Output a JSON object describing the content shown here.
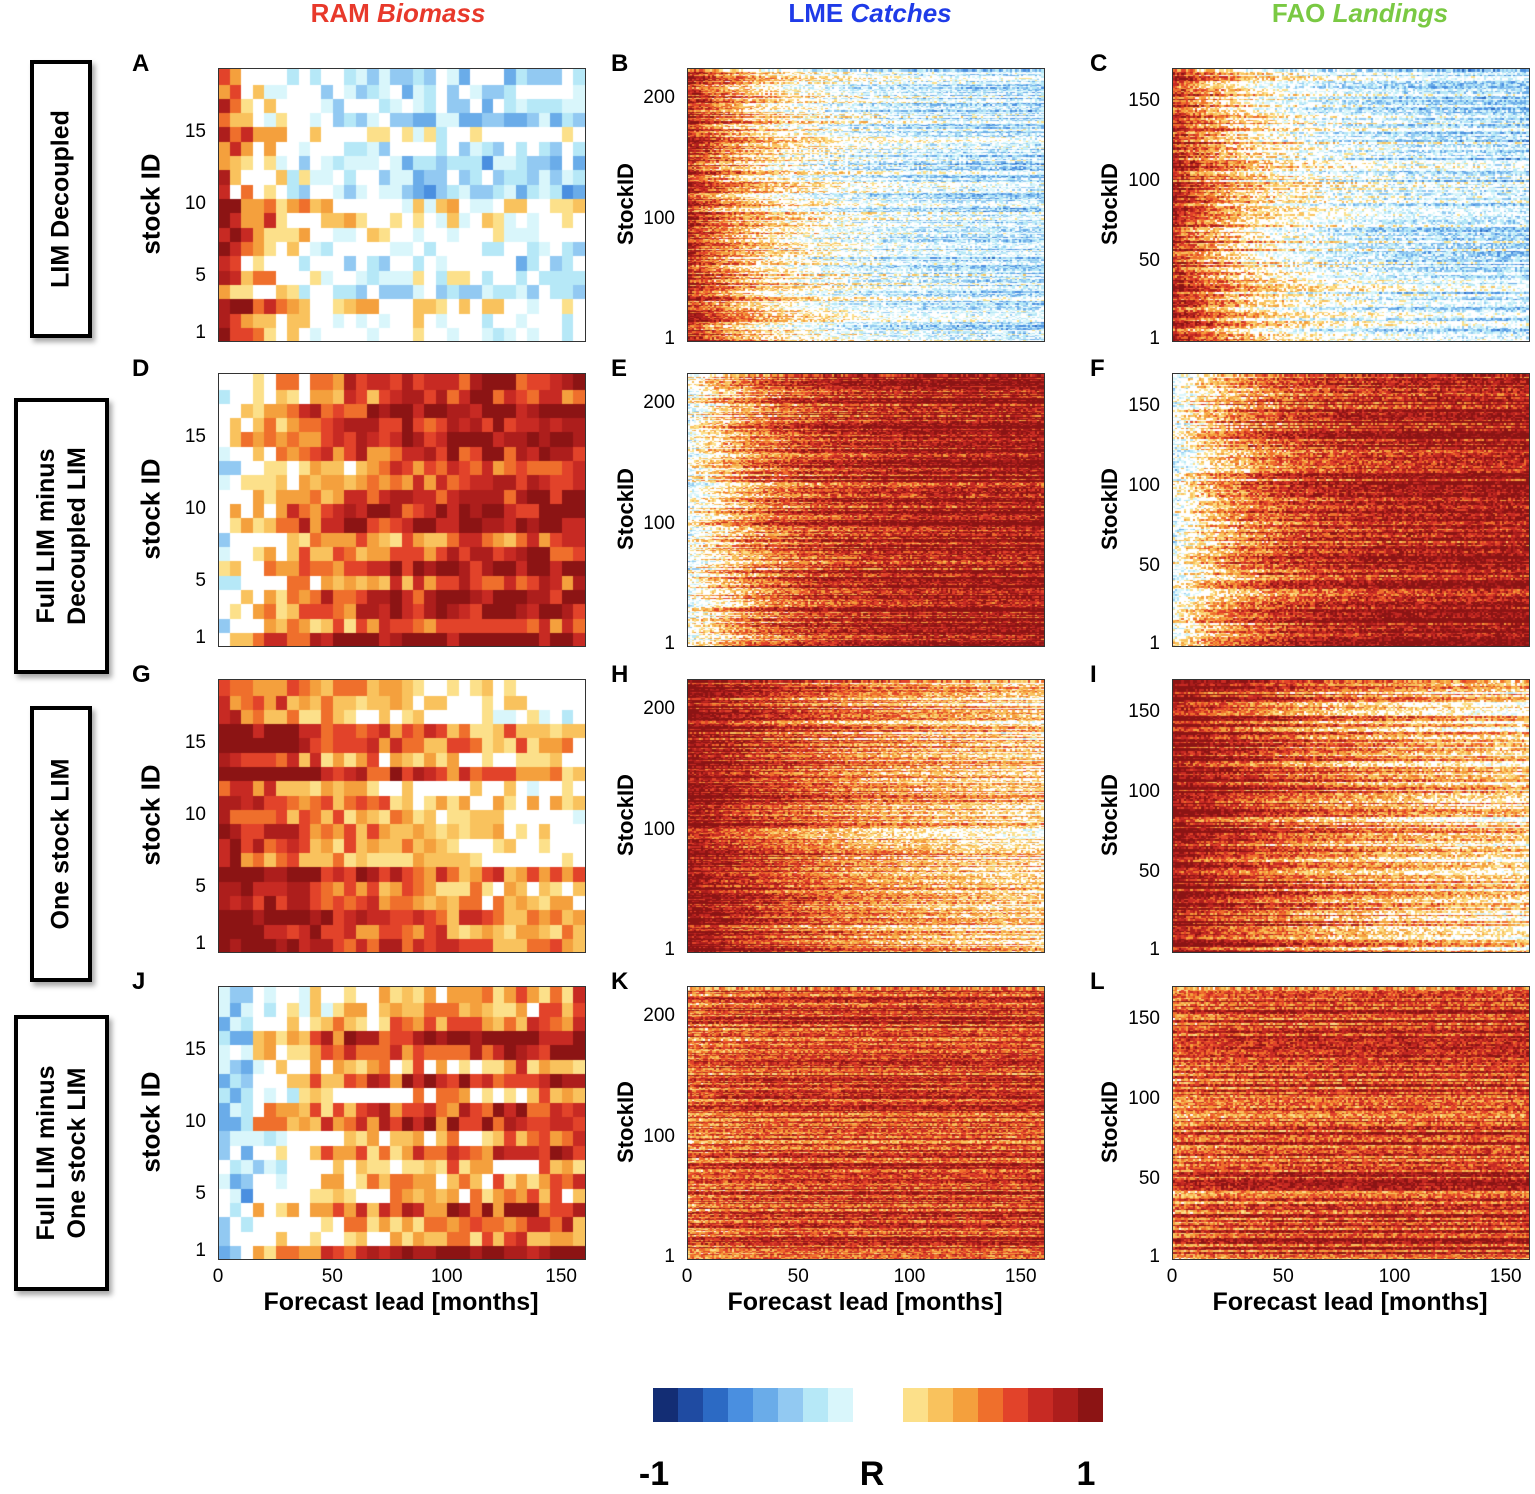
{
  "chart_data": {
    "type": "heatmap",
    "columns": [
      {
        "title_plain": "RAM",
        "title_italic": "Biomass",
        "color": "#e8392b"
      },
      {
        "title_plain": "LME",
        "title_italic": "Catches",
        "color": "#1f3be8"
      },
      {
        "title_plain": "FAO",
        "title_italic": "Landings",
        "color": "#7ac943"
      }
    ],
    "rows": [
      {
        "label": [
          "LIM Decoupled"
        ]
      },
      {
        "label": [
          "Full LIM minus",
          "Decoupled LIM"
        ]
      },
      {
        "label": [
          "One stock LIM"
        ]
      },
      {
        "label": [
          "Full LIM minus",
          "One stock LIM"
        ]
      }
    ],
    "panel_letters": [
      "A",
      "B",
      "C",
      "D",
      "E",
      "F",
      "G",
      "H",
      "I",
      "J",
      "K",
      "L"
    ],
    "ylabels": [
      "stock ID",
      "StockID",
      "StockID"
    ],
    "yticks": [
      [
        "15",
        "10",
        "5",
        "1"
      ],
      [
        "200",
        "100",
        "1"
      ],
      [
        "150",
        "100",
        "50",
        "1"
      ]
    ],
    "ytick_values": [
      [
        15,
        10,
        5,
        1
      ],
      [
        200,
        100,
        1
      ],
      [
        150,
        100,
        50,
        1
      ]
    ],
    "n_stocks": [
      19,
      224,
      170
    ],
    "xlim": [
      0,
      160
    ],
    "xticks": [
      "0",
      "50",
      "100",
      "150"
    ],
    "xtick_values": [
      0,
      50,
      100,
      150
    ],
    "xlabel": "Forecast lead [months]",
    "colorbar": {
      "label": "R",
      "min_label": "-1",
      "max_label": "1",
      "range": [
        -1,
        1
      ],
      "colors": [
        "#132d74",
        "#1f4ba2",
        "#2c6ac4",
        "#4a8fe0",
        "#6aace9",
        "#92c9f2",
        "#b6e8f7",
        "#d9f6fb",
        "#ffffff",
        "#fce08a",
        "#f9c25d",
        "#f4a03d",
        "#ef6f2c",
        "#e2432a",
        "#c72a23",
        "#ad1e1c",
        "#8c1414"
      ]
    },
    "panel_patterns": [
      "decay-early",
      "decay-mid",
      "decay-mid",
      "grow-late",
      "grow-late",
      "grow-late",
      "decay-slow",
      "decay-slow",
      "decay-slow",
      "grow-late-sparse",
      "uniform-mid",
      "uniform-mid"
    ]
  }
}
